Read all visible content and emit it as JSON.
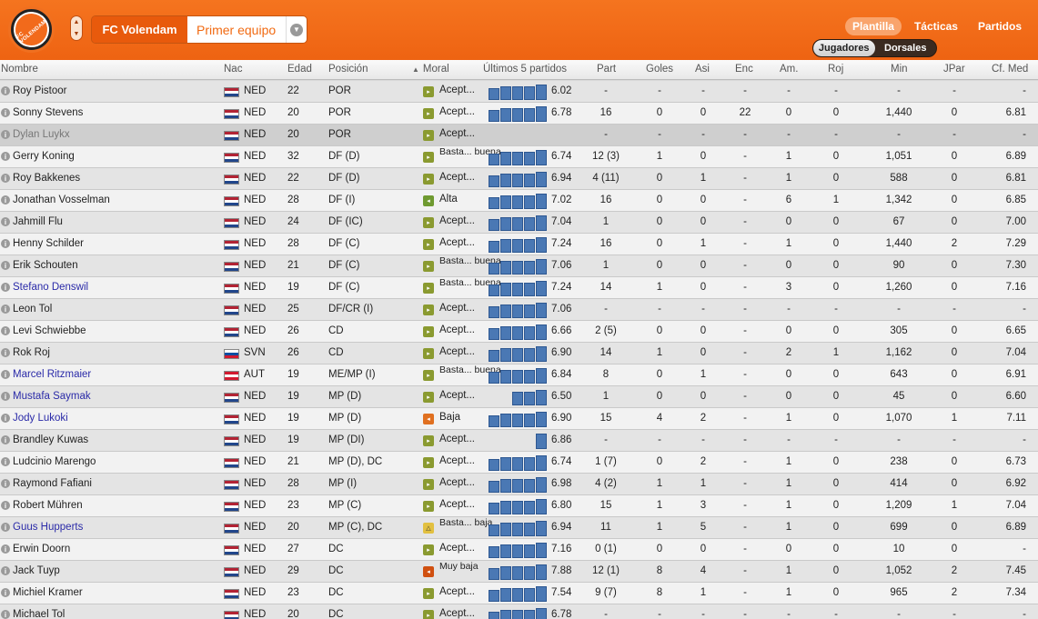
{
  "header": {
    "club_name": "FC Volendam",
    "team_selector": "Primer equipo",
    "crest_text": "FC VOLENDAM",
    "nav": [
      "Plantilla",
      "Tácticas",
      "Partidos"
    ],
    "nav_active": 0,
    "segments": [
      "Jugadores",
      "Dorsales"
    ],
    "segment_active": 0
  },
  "columns": {
    "nombre": "Nombre",
    "nac": "Nac",
    "edad": "Edad",
    "posicion": "Posición",
    "moral": "Moral",
    "ultimos": "Últimos 5 partidos",
    "part": "Part",
    "goles": "Goles",
    "asi": "Asi",
    "enc": "Enc",
    "am": "Am.",
    "roj": "Roj",
    "min": "Min",
    "jpar": "JPar",
    "cfmed": "Cf. Med"
  },
  "colors": {
    "header_orange": "#ee6312",
    "link_blue": "#2a2aa8",
    "form_bar": "#4a78b4"
  },
  "players": [
    {
      "name": "Roy Pistoor",
      "style": "normal",
      "nac": "NED",
      "edad": "22",
      "pos": "POR",
      "moral": "Acept...",
      "moral_icon": "down",
      "form_bars": 5,
      "form": "6.02",
      "part": "-",
      "goles": "-",
      "asi": "-",
      "enc": "-",
      "am": "-",
      "roj": "-",
      "min": "-",
      "jpar": "-",
      "cfmed": "-"
    },
    {
      "name": "Sonny Stevens",
      "style": "normal",
      "nac": "NED",
      "edad": "20",
      "pos": "POR",
      "moral": "Acept...",
      "moral_icon": "down",
      "form_bars": 5,
      "form": "6.78",
      "part": "16",
      "goles": "0",
      "asi": "0",
      "enc": "22",
      "am": "0",
      "roj": "0",
      "min": "1,440",
      "jpar": "0",
      "cfmed": "6.81"
    },
    {
      "name": "Dylan Luykx",
      "style": "gray",
      "nac": "NED",
      "edad": "20",
      "pos": "POR",
      "moral": "Acept...",
      "moral_icon": "down",
      "form_bars": 0,
      "form": "",
      "part": "-",
      "goles": "-",
      "asi": "-",
      "enc": "-",
      "am": "-",
      "roj": "-",
      "min": "-",
      "jpar": "-",
      "cfmed": "-"
    },
    {
      "name": "Gerry Koning",
      "style": "normal",
      "nac": "NED",
      "edad": "32",
      "pos": "DF (D)",
      "moral": "Basta... buena",
      "moral_icon": "down",
      "form_bars": 5,
      "form": "6.74",
      "part": "12 (3)",
      "goles": "1",
      "asi": "0",
      "enc": "-",
      "am": "1",
      "roj": "0",
      "min": "1,051",
      "jpar": "0",
      "cfmed": "6.89"
    },
    {
      "name": "Roy Bakkenes",
      "style": "normal",
      "nac": "NED",
      "edad": "22",
      "pos": "DF (D)",
      "moral": "Acept...",
      "moral_icon": "down",
      "form_bars": 5,
      "form": "6.94",
      "part": "4 (11)",
      "goles": "0",
      "asi": "1",
      "enc": "-",
      "am": "1",
      "roj": "0",
      "min": "588",
      "jpar": "0",
      "cfmed": "6.81"
    },
    {
      "name": "Jonathan Vosselman",
      "style": "normal",
      "nac": "NED",
      "edad": "28",
      "pos": "DF (I)",
      "moral": "Alta",
      "moral_icon": "ok",
      "form_bars": 5,
      "form": "7.02",
      "part": "16",
      "goles": "0",
      "asi": "0",
      "enc": "-",
      "am": "6",
      "roj": "1",
      "min": "1,342",
      "jpar": "0",
      "cfmed": "6.85"
    },
    {
      "name": "Jahmill Flu",
      "style": "normal",
      "nac": "NED",
      "edad": "24",
      "pos": "DF (IC)",
      "moral": "Acept...",
      "moral_icon": "down",
      "form_bars": 5,
      "form": "7.04",
      "part": "1",
      "goles": "0",
      "asi": "0",
      "enc": "-",
      "am": "0",
      "roj": "0",
      "min": "67",
      "jpar": "0",
      "cfmed": "7.00"
    },
    {
      "name": "Henny Schilder",
      "style": "normal",
      "nac": "NED",
      "edad": "28",
      "pos": "DF (C)",
      "moral": "Acept...",
      "moral_icon": "down",
      "form_bars": 5,
      "form": "7.24",
      "part": "16",
      "goles": "0",
      "asi": "1",
      "enc": "-",
      "am": "1",
      "roj": "0",
      "min": "1,440",
      "jpar": "2",
      "cfmed": "7.29"
    },
    {
      "name": "Erik Schouten",
      "style": "normal",
      "nac": "NED",
      "edad": "21",
      "pos": "DF (C)",
      "moral": "Basta... buena",
      "moral_icon": "down",
      "form_bars": 5,
      "form": "7.06",
      "part": "1",
      "goles": "0",
      "asi": "0",
      "enc": "-",
      "am": "0",
      "roj": "0",
      "min": "90",
      "jpar": "0",
      "cfmed": "7.30"
    },
    {
      "name": "Stefano Denswil",
      "style": "link",
      "nac": "NED",
      "edad": "19",
      "pos": "DF (C)",
      "moral": "Basta... buena",
      "moral_icon": "down",
      "form_bars": 5,
      "form": "7.24",
      "part": "14",
      "goles": "1",
      "asi": "0",
      "enc": "-",
      "am": "3",
      "roj": "0",
      "min": "1,260",
      "jpar": "0",
      "cfmed": "7.16"
    },
    {
      "name": "Leon Tol",
      "style": "normal",
      "nac": "NED",
      "edad": "25",
      "pos": "DF/CR (I)",
      "moral": "Acept...",
      "moral_icon": "down",
      "form_bars": 5,
      "form": "7.06",
      "part": "-",
      "goles": "-",
      "asi": "-",
      "enc": "-",
      "am": "-",
      "roj": "-",
      "min": "-",
      "jpar": "-",
      "cfmed": "-"
    },
    {
      "name": "Levi Schwiebbe",
      "style": "normal",
      "nac": "NED",
      "edad": "26",
      "pos": "CD",
      "moral": "Acept...",
      "moral_icon": "down",
      "form_bars": 5,
      "form": "6.66",
      "part": "2 (5)",
      "goles": "0",
      "asi": "0",
      "enc": "-",
      "am": "0",
      "roj": "0",
      "min": "305",
      "jpar": "0",
      "cfmed": "6.65"
    },
    {
      "name": "Rok Roj",
      "style": "normal",
      "nac": "SVN",
      "edad": "26",
      "pos": "CD",
      "moral": "Acept...",
      "moral_icon": "down",
      "form_bars": 5,
      "form": "6.90",
      "part": "14",
      "goles": "1",
      "asi": "0",
      "enc": "-",
      "am": "2",
      "roj": "1",
      "min": "1,162",
      "jpar": "0",
      "cfmed": "7.04"
    },
    {
      "name": "Marcel Ritzmaier",
      "style": "link",
      "nac": "AUT",
      "edad": "19",
      "pos": "ME/MP (I)",
      "moral": "Basta... buena",
      "moral_icon": "down",
      "form_bars": 5,
      "form": "6.84",
      "part": "8",
      "goles": "0",
      "asi": "1",
      "enc": "-",
      "am": "0",
      "roj": "0",
      "min": "643",
      "jpar": "0",
      "cfmed": "6.91"
    },
    {
      "name": "Mustafa Saymak",
      "style": "link",
      "nac": "NED",
      "edad": "19",
      "pos": "MP (D)",
      "moral": "Acept...",
      "moral_icon": "down",
      "form_bars": 3,
      "form": "6.50",
      "part": "1",
      "goles": "0",
      "asi": "0",
      "enc": "-",
      "am": "0",
      "roj": "0",
      "min": "45",
      "jpar": "0",
      "cfmed": "6.60"
    },
    {
      "name": "Jody Lukoki",
      "style": "link",
      "nac": "NED",
      "edad": "19",
      "pos": "MP (D)",
      "moral": "Baja",
      "moral_icon": "bad",
      "form_bars": 5,
      "form": "6.90",
      "part": "15",
      "goles": "4",
      "asi": "2",
      "enc": "-",
      "am": "1",
      "roj": "0",
      "min": "1,070",
      "jpar": "1",
      "cfmed": "7.11"
    },
    {
      "name": "Brandley Kuwas",
      "style": "normal",
      "nac": "NED",
      "edad": "19",
      "pos": "MP (DI)",
      "moral": "Acept...",
      "moral_icon": "down",
      "form_bars": 1,
      "form": "6.86",
      "part": "-",
      "goles": "-",
      "asi": "-",
      "enc": "-",
      "am": "-",
      "roj": "-",
      "min": "-",
      "jpar": "-",
      "cfmed": "-"
    },
    {
      "name": "Ludcinio Marengo",
      "style": "normal",
      "nac": "NED",
      "edad": "21",
      "pos": "MP (D), DC",
      "moral": "Acept...",
      "moral_icon": "down",
      "form_bars": 5,
      "form": "6.74",
      "part": "1 (7)",
      "goles": "0",
      "asi": "2",
      "enc": "-",
      "am": "1",
      "roj": "0",
      "min": "238",
      "jpar": "0",
      "cfmed": "6.73"
    },
    {
      "name": "Raymond Fafiani",
      "style": "normal",
      "nac": "NED",
      "edad": "28",
      "pos": "MP (I)",
      "moral": "Acept...",
      "moral_icon": "down",
      "form_bars": 5,
      "form": "6.98",
      "part": "4 (2)",
      "goles": "1",
      "asi": "1",
      "enc": "-",
      "am": "1",
      "roj": "0",
      "min": "414",
      "jpar": "0",
      "cfmed": "6.92"
    },
    {
      "name": "Robert Mühren",
      "style": "normal",
      "nac": "NED",
      "edad": "23",
      "pos": "MP (C)",
      "moral": "Acept...",
      "moral_icon": "down",
      "form_bars": 5,
      "form": "6.80",
      "part": "15",
      "goles": "1",
      "asi": "3",
      "enc": "-",
      "am": "1",
      "roj": "0",
      "min": "1,209",
      "jpar": "1",
      "cfmed": "7.04"
    },
    {
      "name": "Guus Hupperts",
      "style": "link",
      "nac": "NED",
      "edad": "20",
      "pos": "MP (C), DC",
      "moral": "Basta... baja",
      "moral_icon": "warn",
      "form_bars": 5,
      "form": "6.94",
      "part": "11",
      "goles": "1",
      "asi": "5",
      "enc": "-",
      "am": "1",
      "roj": "0",
      "min": "699",
      "jpar": "0",
      "cfmed": "6.89"
    },
    {
      "name": "Erwin Doorn",
      "style": "normal",
      "nac": "NED",
      "edad": "27",
      "pos": "DC",
      "moral": "Acept...",
      "moral_icon": "down",
      "form_bars": 5,
      "form": "7.16",
      "part": "0 (1)",
      "goles": "0",
      "asi": "0",
      "enc": "-",
      "am": "0",
      "roj": "0",
      "min": "10",
      "jpar": "0",
      "cfmed": "-"
    },
    {
      "name": "Jack Tuyp",
      "style": "normal",
      "nac": "NED",
      "edad": "29",
      "pos": "DC",
      "moral": "Muy baja",
      "moral_icon": "vbad",
      "form_bars": 5,
      "form": "7.88",
      "part": "12 (1)",
      "goles": "8",
      "asi": "4",
      "enc": "-",
      "am": "1",
      "roj": "0",
      "min": "1,052",
      "jpar": "2",
      "cfmed": "7.45"
    },
    {
      "name": "Michiel Kramer",
      "style": "normal",
      "nac": "NED",
      "edad": "23",
      "pos": "DC",
      "moral": "Acept...",
      "moral_icon": "down",
      "form_bars": 5,
      "form": "7.54",
      "part": "9 (7)",
      "goles": "8",
      "asi": "1",
      "enc": "-",
      "am": "1",
      "roj": "0",
      "min": "965",
      "jpar": "2",
      "cfmed": "7.34"
    },
    {
      "name": "Michael Tol",
      "style": "normal",
      "nac": "NED",
      "edad": "20",
      "pos": "DC",
      "moral": "Acept...",
      "moral_icon": "down",
      "form_bars": 5,
      "form": "6.78",
      "part": "-",
      "goles": "-",
      "asi": "-",
      "enc": "-",
      "am": "-",
      "roj": "-",
      "min": "-",
      "jpar": "-",
      "cfmed": "-"
    }
  ]
}
